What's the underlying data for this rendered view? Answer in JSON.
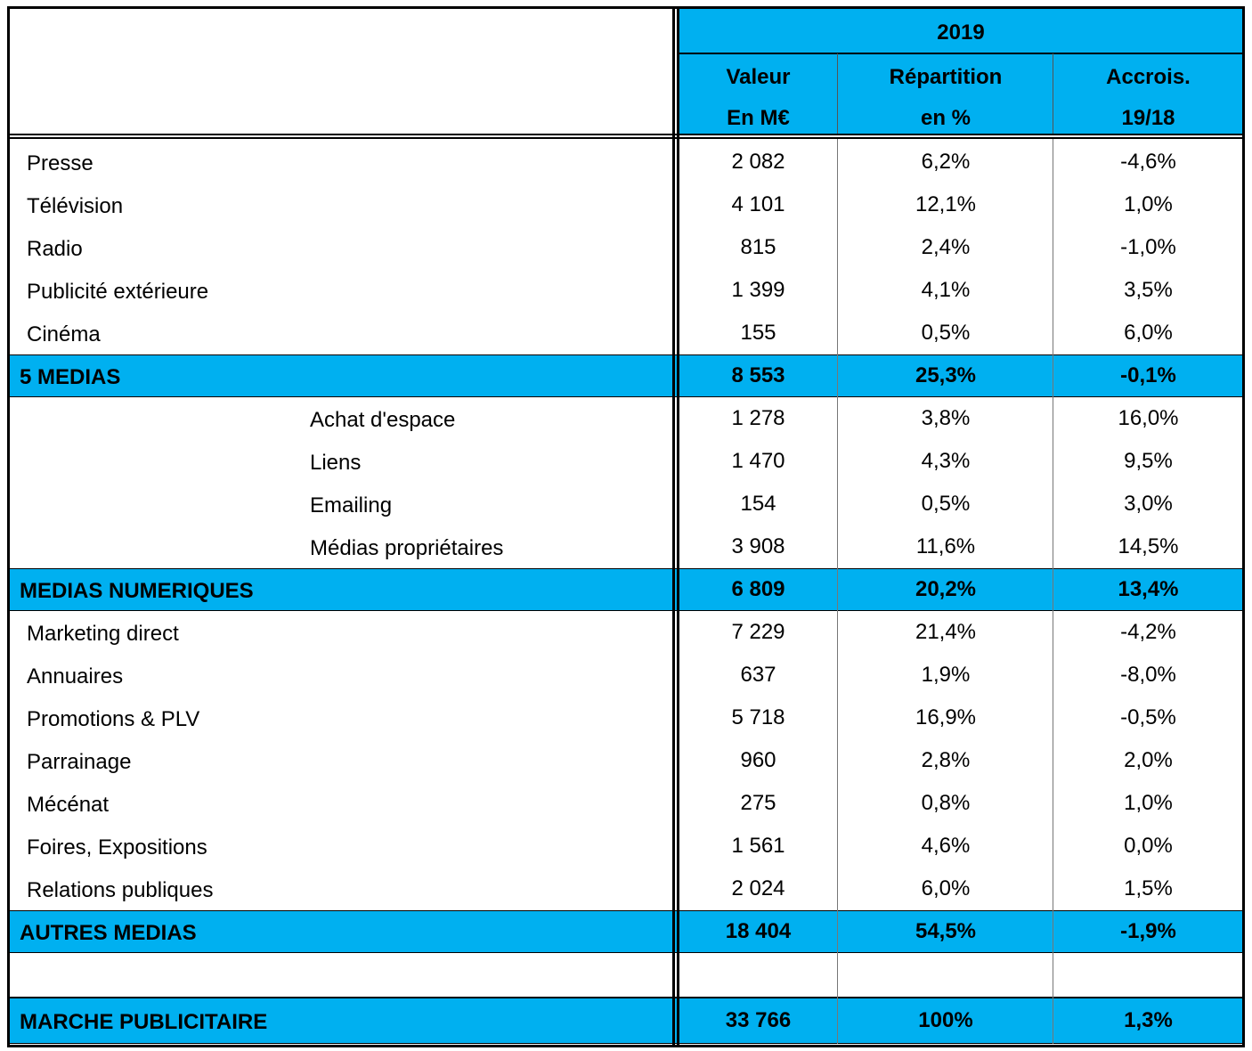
{
  "table": {
    "header": {
      "year": "2019",
      "columns": [
        [
          "Valeur",
          "En M€"
        ],
        [
          "Répartition",
          "en %"
        ],
        [
          "Accrois.",
          "19/18"
        ]
      ]
    },
    "groups": [
      {
        "indent": false,
        "items": [
          [
            "Presse",
            "2 082",
            "6,2%",
            "-4,6%"
          ],
          [
            "Télévision",
            "4 101",
            "12,1%",
            "1,0%"
          ],
          [
            "Radio",
            "815",
            "2,4%",
            "-1,0%"
          ],
          [
            "Publicité extérieure",
            "1 399",
            "4,1%",
            "3,5%"
          ],
          [
            "Cinéma",
            "155",
            "0,5%",
            "6,0%"
          ]
        ],
        "total": [
          "5 MEDIAS",
          "8 553",
          "25,3%",
          "-0,1%"
        ]
      },
      {
        "indent": true,
        "items": [
          [
            "Achat d'espace",
            "1 278",
            "3,8%",
            "16,0%"
          ],
          [
            "Liens",
            "1 470",
            "4,3%",
            "9,5%"
          ],
          [
            "Emailing",
            "154",
            "0,5%",
            "3,0%"
          ],
          [
            "Médias propriétaires",
            "3 908",
            "11,6%",
            "14,5%"
          ]
        ],
        "total": [
          "MEDIAS NUMERIQUES",
          "6 809",
          "20,2%",
          "13,4%"
        ]
      },
      {
        "indent": false,
        "items": [
          [
            "Marketing direct",
            "7 229",
            "21,4%",
            "-4,2%"
          ],
          [
            "Annuaires",
            "637",
            "1,9%",
            "-8,0%"
          ],
          [
            "Promotions & PLV",
            "5 718",
            "16,9%",
            "-0,5%"
          ],
          [
            "Parrainage",
            "960",
            "2,8%",
            "2,0%"
          ],
          [
            "Mécénat",
            "275",
            "0,8%",
            "1,0%"
          ],
          [
            "Foires, Expositions",
            "1 561",
            "4,6%",
            "0,0%"
          ],
          [
            "Relations publiques",
            "2 024",
            "6,0%",
            "1,5%"
          ]
        ],
        "total": [
          "AUTRES MEDIAS",
          "18 404",
          "54,5%",
          "-1,9%"
        ]
      }
    ],
    "grand_total": [
      "MARCHE PUBLICITAIRE",
      "33 766",
      "100%",
      "1,3%"
    ]
  }
}
